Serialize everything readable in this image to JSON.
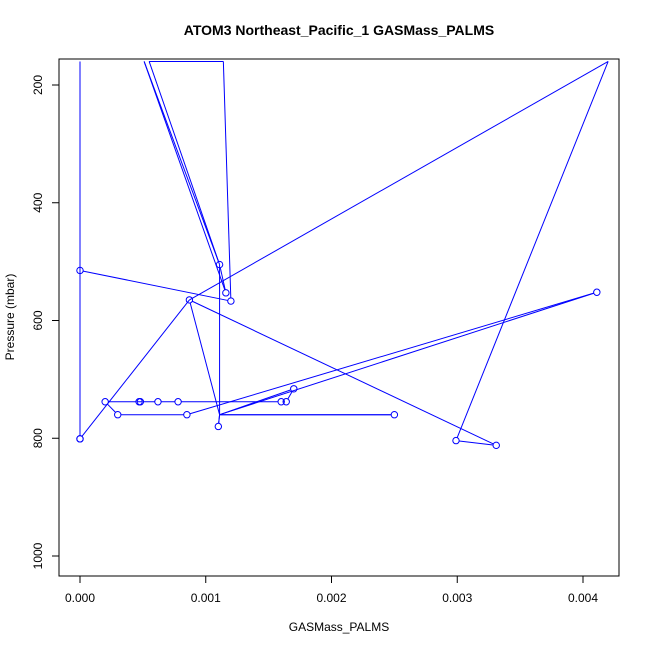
{
  "chart_data": {
    "type": "line",
    "title": "ATOM3 Northeast_Pacific_1 GASMass_PALMS",
    "xlabel": "GASMass_PALMS",
    "ylabel": "Pressure (mbar)",
    "xlim": [
      -0.00015,
      0.00428
    ],
    "ylim": [
      1035,
      160
    ],
    "y_reversed": true,
    "x_ticks": [
      0,
      0.001,
      0.002,
      0.003,
      0.004
    ],
    "x_tick_labels": [
      "0.000",
      "0.001",
      "0.002",
      "0.003",
      "0.004"
    ],
    "y_ticks": [
      200,
      400,
      600,
      800,
      1000
    ],
    "y_tick_labels": [
      "200",
      "400",
      "600",
      "800",
      "1000"
    ],
    "grid": false,
    "color": "#0000ff",
    "marker": "open-circle",
    "series": [
      {
        "name": "",
        "points": [
          {
            "x": 0.0,
            "y": 801
          },
          {
            "x": 0.0,
            "y": 160,
            "marker": false
          },
          {
            "x": 0.0,
            "y": 515
          },
          {
            "x": 0.0012,
            "y": 567
          },
          {
            "x": 0.00114,
            "y": 160,
            "marker": false
          },
          {
            "x": 0.00055,
            "y": 160,
            "marker": false
          },
          {
            "x": 0.00111,
            "y": 505
          },
          {
            "x": 0.00116,
            "y": 553
          },
          {
            "x": 0.00051,
            "y": 160,
            "marker": false
          },
          {
            "x": 0.00111,
            "y": 505,
            "marker": false
          },
          {
            "x": 0.00111,
            "y": 760,
            "marker": false
          },
          {
            "x": 0.00411,
            "y": 552
          },
          {
            "x": 0.00085,
            "y": 760
          },
          {
            "x": 0.0003,
            "y": 760
          },
          {
            "x": 0.0002,
            "y": 738
          },
          {
            "x": 0.00047,
            "y": 738
          },
          {
            "x": 0.00048,
            "y": 738
          },
          {
            "x": 0.00062,
            "y": 738
          },
          {
            "x": 0.00078,
            "y": 738
          },
          {
            "x": 0.0016,
            "y": 738
          },
          {
            "x": 0.00164,
            "y": 738
          },
          {
            "x": 0.0017,
            "y": 716
          },
          {
            "x": 0.00111,
            "y": 760,
            "marker": false
          },
          {
            "x": 0.0025,
            "y": 760
          },
          {
            "x": 0.00111,
            "y": 760,
            "marker": false
          },
          {
            "x": 0.0011,
            "y": 780
          },
          {
            "x": 0.00111,
            "y": 760,
            "marker": false
          },
          {
            "x": 0.00087,
            "y": 565
          },
          {
            "x": 0.00331,
            "y": 812
          },
          {
            "x": 0.00299,
            "y": 804
          },
          {
            "x": 0.0042,
            "y": 160,
            "marker": false
          },
          {
            "x": 0.00087,
            "y": 565,
            "marker": false
          },
          {
            "x": 0.0,
            "y": 801
          }
        ]
      }
    ]
  }
}
